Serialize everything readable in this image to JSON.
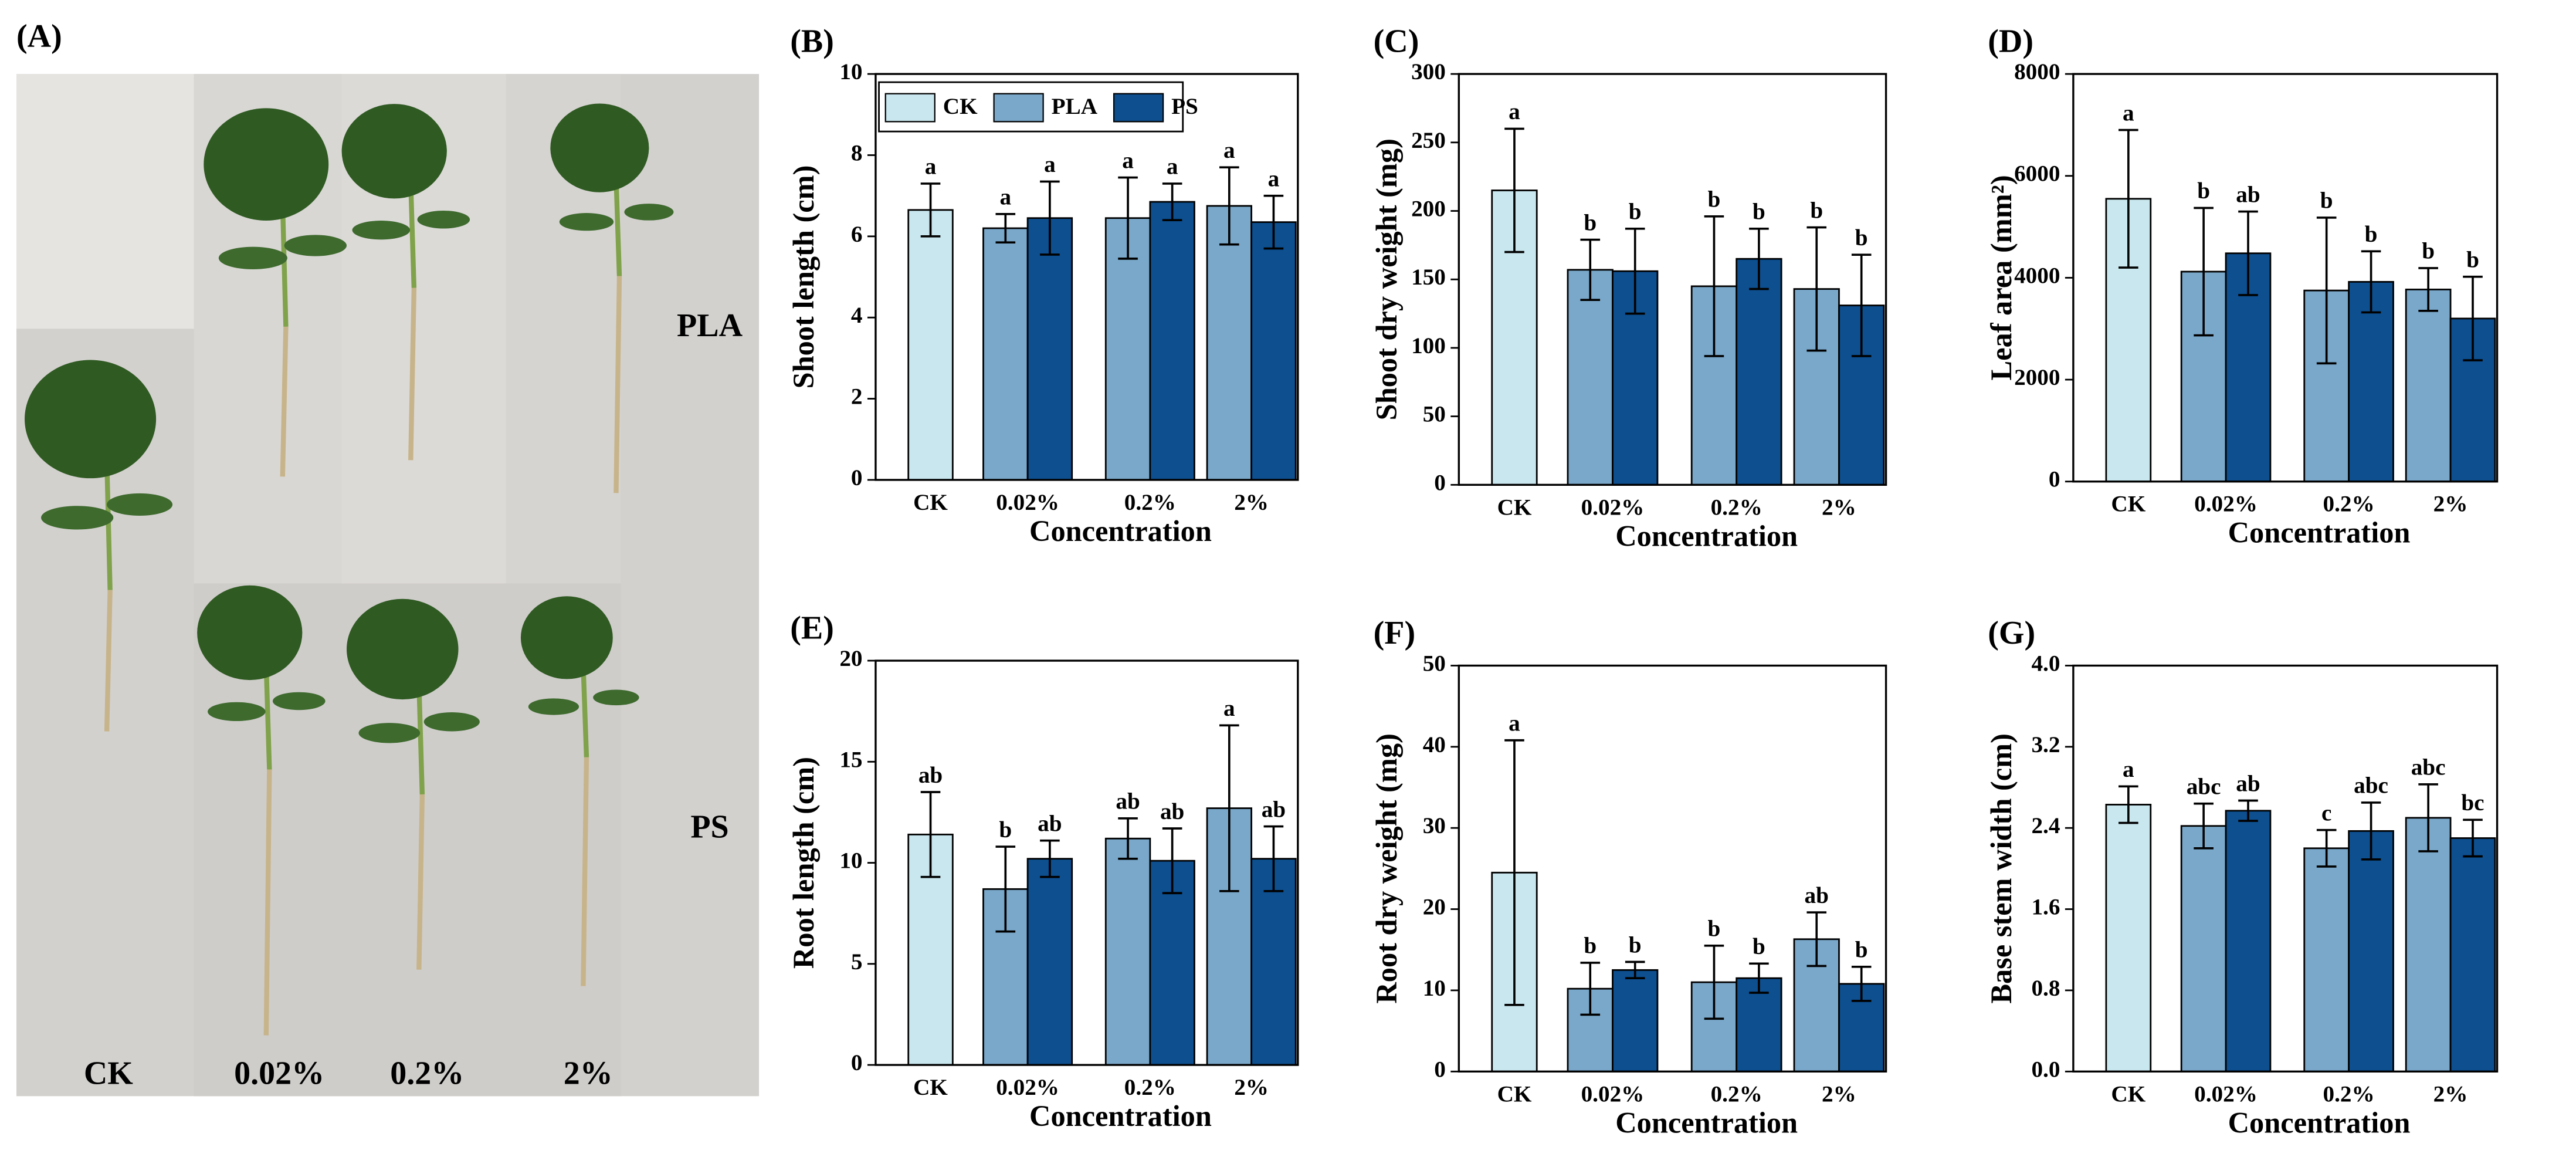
{
  "photo_panel": {
    "label": "(A)",
    "columns": [
      "CK",
      "0.02%",
      "0.2%",
      "2%"
    ],
    "rows": [
      "PLA",
      "PS"
    ]
  },
  "chart_data": [
    {
      "type": "bar",
      "panel": "(B)",
      "ylabel": "Shoot length (cm)",
      "xlabel": "Concentration",
      "categories": [
        "CK",
        "0.02%",
        "0.2%",
        "2%"
      ],
      "ylim": [
        0,
        10
      ],
      "yticks": [
        0,
        2,
        4,
        6,
        8,
        10
      ],
      "legend": "upper left",
      "series": [
        {
          "name": "CK",
          "color": "#c9e7ef",
          "values": [
            6.65,
            null,
            null,
            null
          ],
          "errors": [
            0.65,
            null,
            null,
            null
          ],
          "letters": [
            "a",
            null,
            null,
            null
          ]
        },
        {
          "name": "PLA",
          "color": "#7aa8ca",
          "values": [
            null,
            6.2,
            6.45,
            6.75
          ],
          "errors": [
            null,
            0.35,
            1.0,
            0.95
          ],
          "letters": [
            null,
            "a",
            "a",
            "a"
          ]
        },
        {
          "name": "PS",
          "color": "#0d4f8f",
          "values": [
            null,
            6.45,
            6.85,
            6.35
          ],
          "errors": [
            null,
            0.9,
            0.45,
            0.65
          ],
          "letters": [
            null,
            "a",
            "a",
            "a"
          ]
        }
      ]
    },
    {
      "type": "bar",
      "panel": "(C)",
      "ylabel": "Shoot dry weight (mg)",
      "xlabel": "Concentration",
      "categories": [
        "CK",
        "0.02%",
        "0.2%",
        "2%"
      ],
      "ylim": [
        0,
        300
      ],
      "yticks": [
        0,
        50,
        100,
        150,
        200,
        250,
        300
      ],
      "series": [
        {
          "color": "#c9e7ef",
          "values": [
            215,
            null,
            null,
            null
          ],
          "errors": [
            45,
            null,
            null,
            null
          ],
          "letters": [
            "a",
            null,
            null,
            null
          ]
        },
        {
          "color": "#7aa8ca",
          "values": [
            null,
            157,
            145,
            143
          ],
          "errors": [
            null,
            22,
            51,
            45
          ],
          "letters": [
            null,
            "b",
            "b",
            "b"
          ]
        },
        {
          "color": "#0d4f8f",
          "values": [
            null,
            156,
            165,
            131
          ],
          "errors": [
            null,
            31,
            22,
            37
          ],
          "letters": [
            null,
            "b",
            "b",
            "b"
          ]
        }
      ]
    },
    {
      "type": "bar",
      "panel": "(D)",
      "ylabel": "Leaf area (mm²)",
      "xlabel": "Concentration",
      "categories": [
        "CK",
        "0.02%",
        "0.2%",
        "2%"
      ],
      "ylim": [
        0,
        8000
      ],
      "yticks": [
        0,
        2000,
        4000,
        6000,
        8000
      ],
      "series": [
        {
          "color": "#c9e7ef",
          "values": [
            5550,
            null,
            null,
            null
          ],
          "errors": [
            1350,
            null,
            null,
            null
          ],
          "letters": [
            "a",
            null,
            null,
            null
          ]
        },
        {
          "color": "#7aa8ca",
          "values": [
            null,
            4120,
            3750,
            3770
          ],
          "errors": [
            null,
            1250,
            1430,
            420
          ],
          "letters": [
            null,
            "b",
            "b",
            "b"
          ]
        },
        {
          "color": "#0d4f8f",
          "values": [
            null,
            4480,
            3920,
            3200
          ],
          "errors": [
            null,
            820,
            600,
            820
          ],
          "letters": [
            null,
            "ab",
            "b",
            "b"
          ]
        }
      ]
    },
    {
      "type": "bar",
      "panel": "(E)",
      "ylabel": "Root length (cm)",
      "xlabel": "Concentration",
      "categories": [
        "CK",
        "0.02%",
        "0.2%",
        "2%"
      ],
      "ylim": [
        0,
        20
      ],
      "yticks": [
        0,
        5,
        10,
        15,
        20
      ],
      "series": [
        {
          "color": "#c9e7ef",
          "values": [
            11.4,
            null,
            null,
            null
          ],
          "errors": [
            2.1,
            null,
            null,
            null
          ],
          "letters": [
            "ab",
            null,
            null,
            null
          ]
        },
        {
          "color": "#7aa8ca",
          "values": [
            null,
            8.7,
            11.2,
            12.7
          ],
          "errors": [
            null,
            2.1,
            1.0,
            4.1
          ],
          "letters": [
            null,
            "b",
            "ab",
            "a"
          ]
        },
        {
          "color": "#0d4f8f",
          "values": [
            null,
            10.2,
            10.1,
            10.2
          ],
          "errors": [
            null,
            0.9,
            1.6,
            1.6
          ],
          "letters": [
            null,
            "ab",
            "ab",
            "ab"
          ]
        }
      ]
    },
    {
      "type": "bar",
      "panel": "(F)",
      "ylabel": "Root dry weight (mg)",
      "xlabel": "Concentration",
      "categories": [
        "CK",
        "0.02%",
        "0.2%",
        "2%"
      ],
      "ylim": [
        0,
        50
      ],
      "yticks": [
        0,
        10,
        20,
        30,
        40,
        50
      ],
      "series": [
        {
          "color": "#c9e7ef",
          "values": [
            24.5,
            null,
            null,
            null
          ],
          "errors": [
            16.3,
            null,
            null,
            null
          ],
          "letters": [
            "a",
            null,
            null,
            null
          ]
        },
        {
          "color": "#7aa8ca",
          "values": [
            null,
            10.2,
            11.0,
            16.3
          ],
          "errors": [
            null,
            3.2,
            4.5,
            3.3
          ],
          "letters": [
            null,
            "b",
            "b",
            "ab"
          ]
        },
        {
          "color": "#0d4f8f",
          "values": [
            null,
            12.5,
            11.5,
            10.8
          ],
          "errors": [
            null,
            1.0,
            1.8,
            2.1
          ],
          "letters": [
            null,
            "b",
            "b",
            "b"
          ]
        }
      ]
    },
    {
      "type": "bar",
      "panel": "(G)",
      "ylabel": "Base stem width (cm)",
      "xlabel": "Concentration",
      "categories": [
        "CK",
        "0.02%",
        "0.2%",
        "2%"
      ],
      "ylim": [
        0,
        4
      ],
      "yticks": [
        {
          "value": 0,
          "label": "0.0"
        },
        0.8,
        1.6,
        2.4,
        3.2,
        {
          "value": 4,
          "label": "4.0"
        }
      ],
      "series": [
        {
          "color": "#c9e7ef",
          "values": [
            2.63,
            null,
            null,
            null
          ],
          "errors": [
            0.18,
            null,
            null,
            null
          ],
          "letters": [
            "a",
            null,
            null,
            null
          ]
        },
        {
          "color": "#7aa8ca",
          "values": [
            null,
            2.42,
            2.2,
            2.5
          ],
          "errors": [
            null,
            0.22,
            0.18,
            0.33
          ],
          "letters": [
            null,
            "abc",
            "c",
            "abc"
          ]
        },
        {
          "color": "#0d4f8f",
          "values": [
            null,
            2.57,
            2.37,
            2.3
          ],
          "errors": [
            null,
            0.1,
            0.28,
            0.18
          ],
          "letters": [
            null,
            "ab",
            "abc",
            "bc"
          ]
        }
      ]
    }
  ]
}
